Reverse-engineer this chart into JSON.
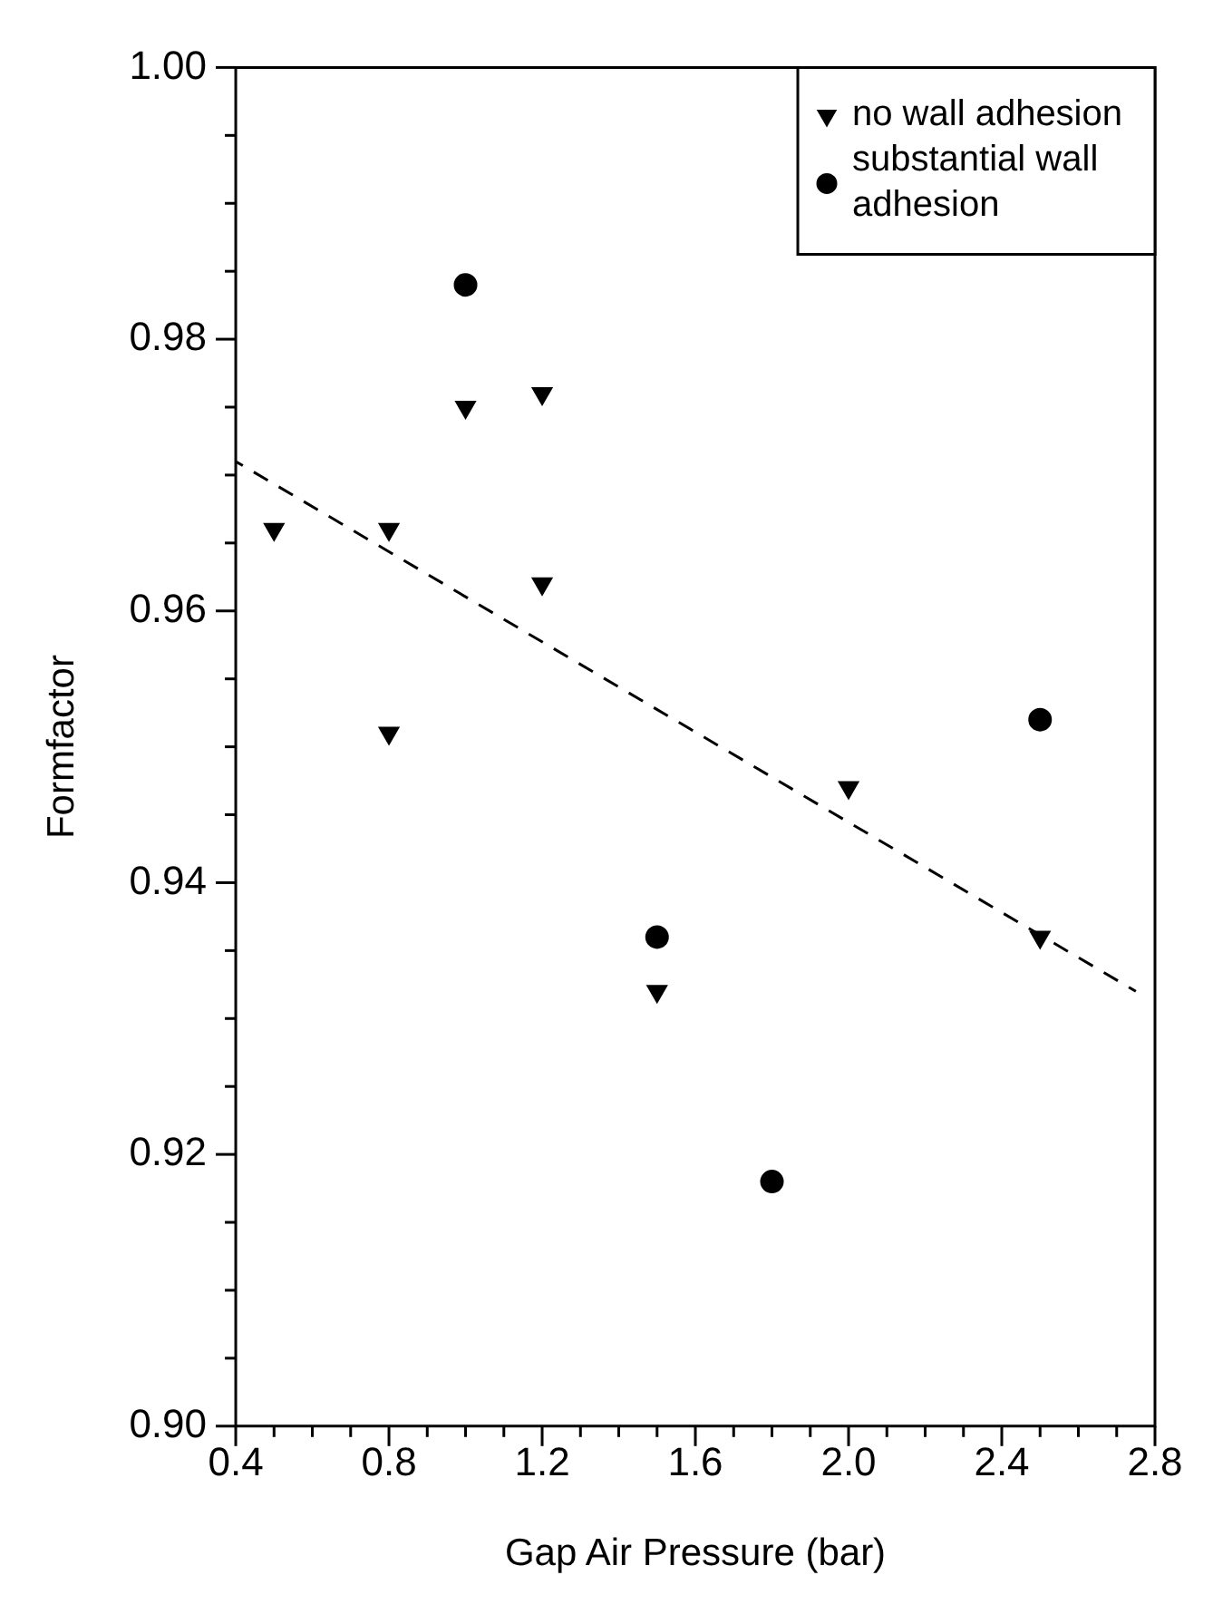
{
  "chart_data": {
    "type": "scatter",
    "xlabel": "Gap Air Pressure (bar)",
    "ylabel": "Formfactor",
    "xlim": [
      0.4,
      2.8
    ],
    "ylim": [
      0.9,
      1.0
    ],
    "xticks": [
      0.4,
      {
        "value": 0.5,
        "label": null
      },
      {
        "value": 0.6,
        "label": null
      },
      {
        "value": 0.7,
        "label": null
      },
      0.8,
      {
        "value": 0.9,
        "label": null
      },
      {
        "value": 1.0,
        "label": null
      },
      {
        "value": 1.1,
        "label": null
      },
      1.2,
      {
        "value": 1.3,
        "label": null
      },
      {
        "value": 1.4,
        "label": null
      },
      {
        "value": 1.5,
        "label": null
      },
      1.6,
      {
        "value": 1.7,
        "label": null
      },
      {
        "value": 1.8,
        "label": null
      },
      {
        "value": 1.9,
        "label": null
      },
      {
        "value": 2.0,
        "label": "2.0"
      },
      {
        "value": 2.1,
        "label": null
      },
      {
        "value": 2.2,
        "label": null
      },
      {
        "value": 2.3,
        "label": null
      },
      2.4,
      {
        "value": 2.5,
        "label": null
      },
      {
        "value": 2.6,
        "label": null
      },
      {
        "value": 2.7,
        "label": null
      },
      2.8
    ],
    "yticks": [
      {
        "value": 0.9,
        "label": "0.90"
      },
      {
        "value": 0.905,
        "label": null
      },
      {
        "value": 0.91,
        "label": null
      },
      {
        "value": 0.915,
        "label": null
      },
      0.92,
      {
        "value": 0.925,
        "label": null
      },
      {
        "value": 0.93,
        "label": null
      },
      {
        "value": 0.935,
        "label": null
      },
      0.94,
      {
        "value": 0.945,
        "label": null
      },
      {
        "value": 0.95,
        "label": null
      },
      {
        "value": 0.955,
        "label": null
      },
      0.96,
      {
        "value": 0.965,
        "label": null
      },
      {
        "value": 0.97,
        "label": null
      },
      {
        "value": 0.975,
        "label": null
      },
      0.98,
      {
        "value": 0.985,
        "label": null
      },
      {
        "value": 0.99,
        "label": null
      },
      {
        "value": 0.995,
        "label": null
      },
      {
        "value": 1.0,
        "label": "1.00"
      }
    ],
    "grid": false,
    "legend": "top right",
    "series": [
      {
        "name": "no wall adhesion",
        "type": "scatter",
        "marker": "triangle",
        "color": "#000000",
        "x": [
          0.5,
          0.8,
          0.8,
          1.0,
          1.2,
          1.2,
          1.5,
          2.0,
          2.5
        ],
        "values": [
          0.966,
          0.966,
          0.951,
          0.975,
          0.976,
          0.962,
          0.932,
          0.947,
          0.936
        ]
      },
      {
        "name": "substantial wall adhesion",
        "type": "scatter",
        "marker": "circle",
        "color": "#000000",
        "x": [
          1.0,
          1.5,
          1.8,
          2.5
        ],
        "values": [
          0.984,
          0.936,
          0.918,
          0.952
        ]
      },
      {
        "type": "line",
        "marker": "none",
        "line_style": "dashed",
        "color": "#000000",
        "x": [
          0.4,
          2.75
        ],
        "values": [
          0.971,
          0.932
        ]
      }
    ]
  }
}
